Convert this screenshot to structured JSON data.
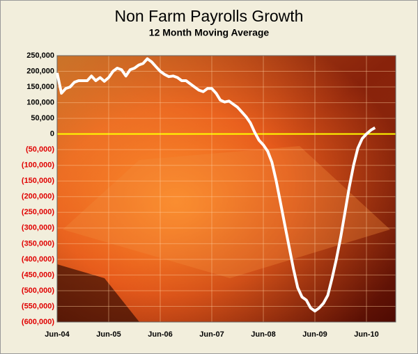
{
  "chart_data": {
    "type": "line",
    "title": "Non Farm Payrolls Growth",
    "subtitle": "12 Month Moving Average",
    "categories": [
      "Jun-04",
      null,
      null,
      null,
      null,
      null,
      null,
      null,
      null,
      null,
      null,
      null,
      "Jun-05",
      null,
      null,
      null,
      null,
      null,
      null,
      null,
      null,
      null,
      null,
      null,
      "Jun-06",
      null,
      null,
      null,
      null,
      null,
      null,
      null,
      null,
      null,
      null,
      null,
      "Jun-07",
      null,
      null,
      null,
      null,
      null,
      null,
      null,
      null,
      null,
      null,
      null,
      "Jun-08",
      null,
      null,
      null,
      null,
      null,
      null,
      null,
      null,
      null,
      null,
      null,
      "Jun-09",
      null,
      null,
      null,
      null,
      null,
      null,
      null,
      null,
      null,
      null,
      null,
      "Jun-10",
      null,
      null
    ],
    "series": [
      {
        "name": "12 Month Moving Average",
        "color": "#ffffff",
        "values": [
          195000,
          130000,
          145000,
          150000,
          165000,
          170000,
          170000,
          170000,
          185000,
          170000,
          180000,
          168000,
          180000,
          200000,
          210000,
          205000,
          185000,
          205000,
          210000,
          220000,
          225000,
          240000,
          230000,
          215000,
          200000,
          190000,
          183000,
          185000,
          180000,
          170000,
          170000,
          160000,
          150000,
          140000,
          135000,
          145000,
          145000,
          130000,
          108000,
          102000,
          105000,
          95000,
          85000,
          70000,
          55000,
          35000,
          5000,
          -20000,
          -35000,
          -55000,
          -90000,
          -150000,
          -220000,
          -290000,
          -360000,
          -430000,
          -490000,
          -520000,
          -530000,
          -555000,
          -565000,
          -555000,
          -540000,
          -515000,
          -460000,
          -400000,
          -330000,
          -250000,
          -170000,
          -100000,
          -45000,
          -15000,
          0,
          12000,
          20000
        ]
      }
    ],
    "ylim": [
      -600000,
      250000
    ],
    "yticks": [
      {
        "value": -600000,
        "label": "(600,000)"
      },
      {
        "value": -550000,
        "label": "(550,000)"
      },
      {
        "value": -500000,
        "label": "(500,000)"
      },
      {
        "value": -450000,
        "label": "(450,000)"
      },
      {
        "value": -400000,
        "label": "(400,000)"
      },
      {
        "value": -350000,
        "label": "(350,000)"
      },
      {
        "value": -300000,
        "label": "(300,000)"
      },
      {
        "value": -250000,
        "label": "(250,000)"
      },
      {
        "value": -200000,
        "label": "(200,000)"
      },
      {
        "value": -150000,
        "label": "(150,000)"
      },
      {
        "value": -100000,
        "label": "(100,000)"
      },
      {
        "value": -50000,
        "label": "(50,000)"
      },
      0,
      {
        "value": 50000,
        "label": "50,000"
      },
      {
        "value": 100000,
        "label": "100,000"
      },
      {
        "value": 150000,
        "label": "150,000"
      },
      {
        "value": 200000,
        "label": "200,000"
      },
      {
        "value": 250000,
        "label": "250,000"
      }
    ],
    "grid": true,
    "zero_line_color": "#ffff00"
  }
}
